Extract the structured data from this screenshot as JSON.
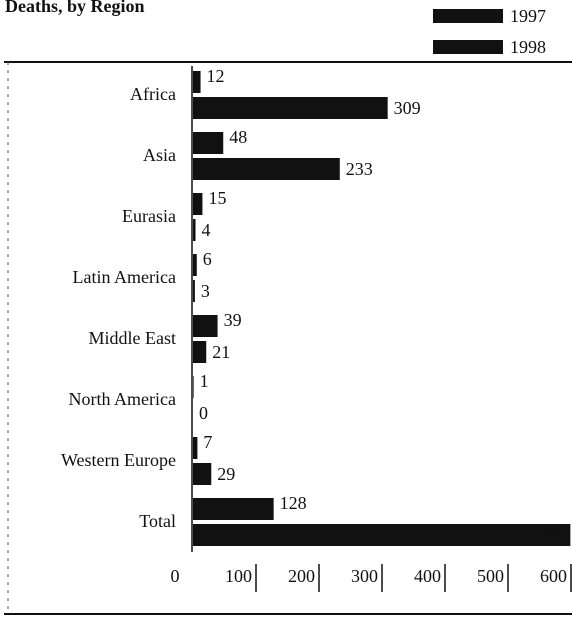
{
  "chart_data": {
    "type": "hbar",
    "title": "Deaths, by Region",
    "categories": [
      "Africa",
      "Asia",
      "Eurasia",
      "Latin America",
      "Middle East",
      "North America",
      "Western Europe",
      "Total"
    ],
    "series": [
      {
        "name": "1997",
        "color": "#111111",
        "values": [
          12,
          48,
          15,
          6,
          39,
          1,
          7,
          128
        ]
      },
      {
        "name": "1998",
        "color": "#111111",
        "values": [
          309,
          233,
          4,
          3,
          21,
          0,
          29,
          599
        ]
      }
    ],
    "xlim": [
      0,
      600
    ],
    "xticks": [
      0,
      100,
      200,
      300,
      400,
      500,
      600
    ]
  }
}
